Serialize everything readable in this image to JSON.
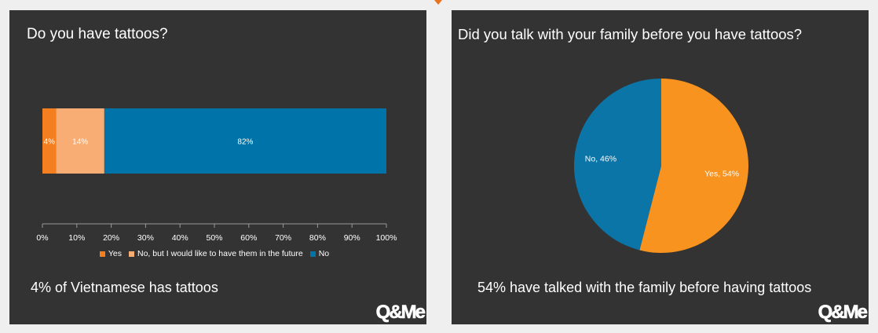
{
  "colors": {
    "yes": "#f47f20",
    "future": "#f8ad74",
    "no": "#0073a8",
    "pie_yes": "#f7931e",
    "pie_no": "#0c75a8",
    "panel": "#333333",
    "accent": "#e8731c"
  },
  "left": {
    "title": "Do you have tattoos?",
    "caption": "4% of Vietnamese has tattoos",
    "logo": "Q&Me"
  },
  "right": {
    "title": "Did you talk with your family before you have tattoos?",
    "caption": "54% have talked with the family before having tattoos",
    "logo": "Q&Me"
  },
  "chart_data": [
    {
      "type": "bar",
      "orientation": "horizontal",
      "stacked": true,
      "series": [
        {
          "name": "Yes",
          "values": [
            4
          ],
          "label": "4%",
          "color": "#f47f20"
        },
        {
          "name": "No, but I would like to have them in the future",
          "values": [
            14
          ],
          "label": "14%",
          "color": "#f8ad74"
        },
        {
          "name": "No",
          "values": [
            82
          ],
          "label": "82%",
          "color": "#0073a8"
        }
      ],
      "xlim": [
        0,
        100
      ],
      "xticks": [
        "0%",
        "10%",
        "20%",
        "30%",
        "40%",
        "50%",
        "60%",
        "70%",
        "80%",
        "90%",
        "100%"
      ],
      "legend_position": "bottom",
      "grid": false
    },
    {
      "type": "pie",
      "slices": [
        {
          "name": "Yes",
          "value": 54,
          "label": "Yes, 54%",
          "color": "#f7931e"
        },
        {
          "name": "No",
          "value": 46,
          "label": "No, 46%",
          "color": "#0c75a8"
        }
      ]
    }
  ]
}
